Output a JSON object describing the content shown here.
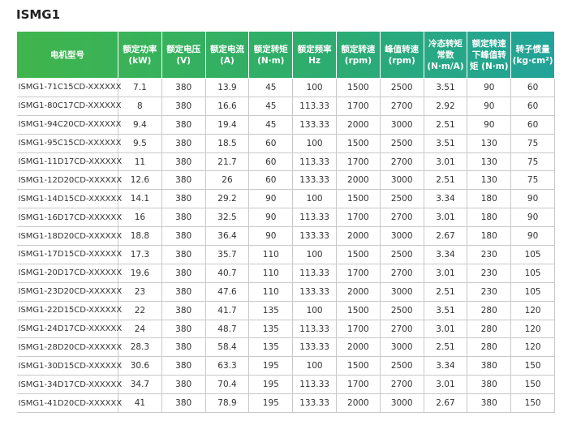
{
  "header": {
    "title": "ISMG1"
  },
  "table": {
    "columns": [
      [
        "电机型号"
      ],
      [
        "额定功率",
        "(kW)"
      ],
      [
        "额定电压",
        "(V)"
      ],
      [
        "额定电流",
        "(A)"
      ],
      [
        "额定转矩",
        "(N·m)"
      ],
      [
        "额定频率",
        "Hz"
      ],
      [
        "额定转速",
        "(rpm)"
      ],
      [
        "峰值转速",
        "(rpm)"
      ],
      [
        "冷态转矩",
        "常数",
        "(N·m/A)"
      ],
      [
        "额定转速",
        "下峰值转",
        "矩 (N·m)"
      ],
      [
        "转子惯量",
        "(kg·cm²)"
      ]
    ],
    "rows": [
      [
        "ISMG1-71C15CD-XXXXXX",
        7.1,
        380,
        13.9,
        45,
        100,
        1500,
        2500,
        3.51,
        90,
        60
      ],
      [
        "ISMG1-80C17CD-XXXXXX",
        8,
        380,
        16.6,
        45,
        113.33,
        1700,
        2700,
        2.92,
        90,
        60
      ],
      [
        "ISMG1-94C20CD-XXXXXX",
        9.4,
        380,
        19.4,
        45,
        133.33,
        2000,
        3000,
        2.51,
        90,
        60
      ],
      [
        "ISMG1-95C15CD-XXXXXX",
        9.5,
        380,
        18.5,
        60,
        100,
        1500,
        2500,
        3.51,
        130,
        75
      ],
      [
        "ISMG1-11D17CD-XXXXXX",
        11,
        380,
        21.7,
        60,
        113.33,
        1700,
        2700,
        3.01,
        130,
        75
      ],
      [
        "ISMG1-12D20CD-XXXXXX",
        12.6,
        380,
        26,
        60,
        133.33,
        2000,
        3000,
        2.51,
        130,
        75
      ],
      [
        "ISMG1-14D15CD-XXXXXX",
        14.1,
        380,
        29.2,
        90,
        100,
        1500,
        2500,
        3.34,
        180,
        90
      ],
      [
        "ISMG1-16D17CD-XXXXXX",
        16,
        380,
        32.5,
        90,
        113.33,
        1700,
        2700,
        3.01,
        180,
        90
      ],
      [
        "ISMG1-18D20CD-XXXXXX",
        18.8,
        380,
        36.4,
        90,
        133.33,
        2000,
        3000,
        2.67,
        180,
        90
      ],
      [
        "ISMG1-17D15CD-XXXXXX",
        17.3,
        380,
        35.7,
        110,
        100,
        1500,
        2500,
        3.34,
        230,
        105
      ],
      [
        "ISMG1-20D17CD-XXXXXX",
        19.6,
        380,
        40.7,
        110,
        113.33,
        1700,
        2700,
        3.01,
        230,
        105
      ],
      [
        "ISMG1-23D20CD-XXXXXX",
        23,
        380,
        47.6,
        110,
        133.33,
        2000,
        3000,
        2.51,
        230,
        105
      ],
      [
        "ISMG1-22D15CD-XXXXXX",
        22,
        380,
        41.7,
        135,
        100,
        1500,
        2500,
        3.51,
        280,
        120
      ],
      [
        "ISMG1-24D17CD-XXXXXX",
        24,
        380,
        48.7,
        135,
        113.33,
        1700,
        2700,
        3.01,
        280,
        120
      ],
      [
        "ISMG1-28D20CD-XXXXXX",
        28.3,
        380,
        58.4,
        135,
        133.33,
        2000,
        3000,
        2.51,
        280,
        120
      ],
      [
        "ISMG1-30D15CD-XXXXXX",
        30.6,
        380,
        63.3,
        195,
        100,
        1500,
        2500,
        3.34,
        380,
        150
      ],
      [
        "ISMG1-34D17CD-XXXXXX",
        34.7,
        380,
        70.4,
        195,
        113.33,
        1700,
        2700,
        3.01,
        380,
        150
      ],
      [
        "ISMG1-41D20CD-XXXXXX",
        41,
        380,
        78.9,
        195,
        133.33,
        2000,
        3000,
        2.67,
        380,
        150
      ]
    ]
  }
}
